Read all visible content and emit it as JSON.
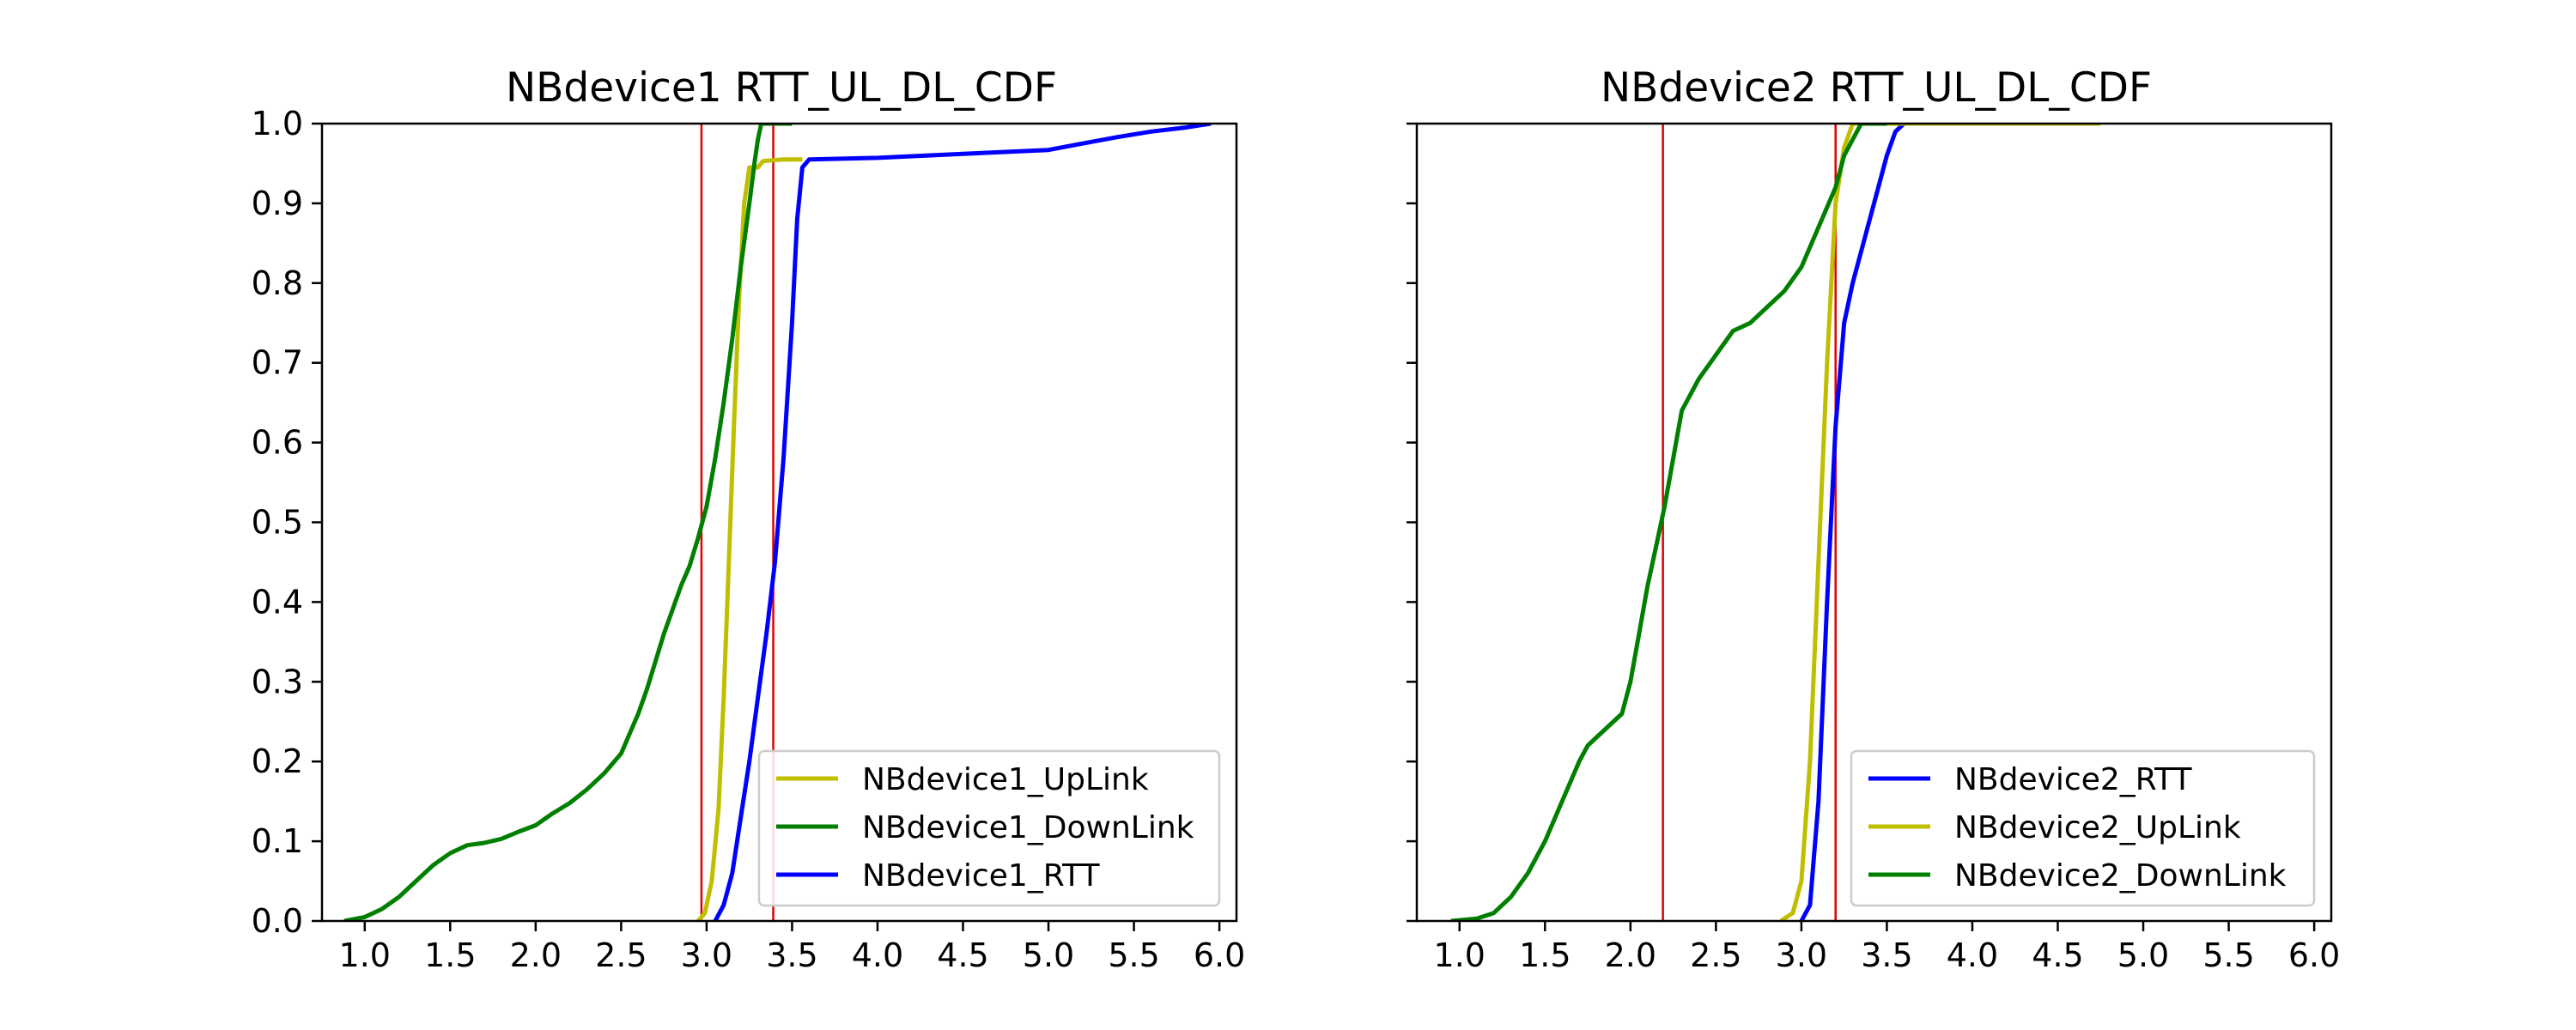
{
  "chart_data": [
    {
      "type": "line",
      "title": "NBdevice1 RTT_UL_DL_CDF",
      "xlabel": "",
      "ylabel": "",
      "xlim": [
        0.75,
        6.1
      ],
      "ylim": [
        0,
        1
      ],
      "xticks": [
        "1.0",
        "1.5",
        "2.0",
        "2.5",
        "3.0",
        "3.5",
        "4.0",
        "4.5",
        "5.0",
        "5.5",
        "6.0"
      ],
      "yticks": [
        "0.0",
        "0.1",
        "0.2",
        "0.3",
        "0.4",
        "0.5",
        "0.6",
        "0.7",
        "0.8",
        "0.9",
        "1.0"
      ],
      "show_yticklabels": true,
      "grid": false,
      "legend_position": "lower-right",
      "vlines": [
        2.97,
        3.39
      ],
      "vline_color": "#e00000",
      "series": [
        {
          "name": "NBdevice1_UpLink",
          "color": "#bfbf00",
          "points": [
            [
              2.95,
              0.0
            ],
            [
              2.99,
              0.01
            ],
            [
              3.03,
              0.05
            ],
            [
              3.07,
              0.14
            ],
            [
              3.1,
              0.28
            ],
            [
              3.13,
              0.45
            ],
            [
              3.16,
              0.62
            ],
            [
              3.19,
              0.78
            ],
            [
              3.22,
              0.9
            ],
            [
              3.25,
              0.945
            ],
            [
              3.3,
              0.945
            ],
            [
              3.33,
              0.953
            ],
            [
              3.45,
              0.955
            ],
            [
              3.56,
              0.955
            ]
          ]
        },
        {
          "name": "NBdevice1_DownLink",
          "color": "#007f00",
          "points": [
            [
              0.88,
              0.0
            ],
            [
              1.0,
              0.005
            ],
            [
              1.1,
              0.015
            ],
            [
              1.2,
              0.03
            ],
            [
              1.3,
              0.05
            ],
            [
              1.4,
              0.07
            ],
            [
              1.5,
              0.085
            ],
            [
              1.6,
              0.095
            ],
            [
              1.7,
              0.098
            ],
            [
              1.8,
              0.103
            ],
            [
              1.9,
              0.112
            ],
            [
              2.0,
              0.12
            ],
            [
              2.1,
              0.135
            ],
            [
              2.2,
              0.148
            ],
            [
              2.3,
              0.165
            ],
            [
              2.4,
              0.185
            ],
            [
              2.5,
              0.21
            ],
            [
              2.55,
              0.235
            ],
            [
              2.6,
              0.26
            ],
            [
              2.65,
              0.29
            ],
            [
              2.7,
              0.325
            ],
            [
              2.75,
              0.36
            ],
            [
              2.8,
              0.39
            ],
            [
              2.85,
              0.42
            ],
            [
              2.9,
              0.445
            ],
            [
              2.95,
              0.48
            ],
            [
              3.0,
              0.52
            ],
            [
              3.05,
              0.58
            ],
            [
              3.1,
              0.65
            ],
            [
              3.15,
              0.73
            ],
            [
              3.2,
              0.82
            ],
            [
              3.25,
              0.9
            ],
            [
              3.28,
              0.95
            ],
            [
              3.3,
              0.98
            ],
            [
              3.32,
              1.0
            ],
            [
              3.5,
              1.0
            ]
          ]
        },
        {
          "name": "NBdevice1_RTT",
          "color": "#0000ff",
          "points": [
            [
              3.05,
              0.0
            ],
            [
              3.1,
              0.02
            ],
            [
              3.15,
              0.06
            ],
            [
              3.2,
              0.13
            ],
            [
              3.25,
              0.2
            ],
            [
              3.3,
              0.28
            ],
            [
              3.35,
              0.36
            ],
            [
              3.4,
              0.45
            ],
            [
              3.45,
              0.58
            ],
            [
              3.5,
              0.75
            ],
            [
              3.53,
              0.88
            ],
            [
              3.56,
              0.945
            ],
            [
              3.6,
              0.955
            ],
            [
              4.0,
              0.957
            ],
            [
              4.5,
              0.962
            ],
            [
              5.0,
              0.967
            ],
            [
              5.2,
              0.975
            ],
            [
              5.4,
              0.983
            ],
            [
              5.6,
              0.99
            ],
            [
              5.8,
              0.995
            ],
            [
              5.95,
              1.0
            ]
          ]
        }
      ]
    },
    {
      "type": "line",
      "title": "NBdevice2 RTT_UL_DL_CDF",
      "xlabel": "",
      "ylabel": "",
      "xlim": [
        0.75,
        6.1
      ],
      "ylim": [
        0,
        1
      ],
      "xticks": [
        "1.0",
        "1.5",
        "2.0",
        "2.5",
        "3.0",
        "3.5",
        "4.0",
        "4.5",
        "5.0",
        "5.5",
        "6.0"
      ],
      "yticks": [
        "0.0",
        "0.1",
        "0.2",
        "0.3",
        "0.4",
        "0.5",
        "0.6",
        "0.7",
        "0.8",
        "0.9",
        "1.0"
      ],
      "show_yticklabels": false,
      "grid": false,
      "legend_position": "lower-right",
      "vlines": [
        2.19,
        3.2
      ],
      "vline_color": "#e00000",
      "series": [
        {
          "name": "NBdevice2_RTT",
          "color": "#0000ff",
          "points": [
            [
              3.0,
              0.0
            ],
            [
              3.05,
              0.02
            ],
            [
              3.1,
              0.15
            ],
            [
              3.15,
              0.4
            ],
            [
              3.2,
              0.62
            ],
            [
              3.25,
              0.75
            ],
            [
              3.3,
              0.8
            ],
            [
              3.35,
              0.84
            ],
            [
              3.4,
              0.88
            ],
            [
              3.45,
              0.92
            ],
            [
              3.5,
              0.96
            ],
            [
              3.55,
              0.99
            ],
            [
              3.6,
              1.0
            ],
            [
              4.5,
              1.0
            ]
          ]
        },
        {
          "name": "NBdevice2_UpLink",
          "color": "#bfbf00",
          "points": [
            [
              2.88,
              0.0
            ],
            [
              2.95,
              0.01
            ],
            [
              3.0,
              0.05
            ],
            [
              3.05,
              0.2
            ],
            [
              3.1,
              0.45
            ],
            [
              3.15,
              0.7
            ],
            [
              3.2,
              0.9
            ],
            [
              3.25,
              0.97
            ],
            [
              3.3,
              1.0
            ],
            [
              4.75,
              1.0
            ]
          ]
        },
        {
          "name": "NBdevice2_DownLink",
          "color": "#007f00",
          "points": [
            [
              0.95,
              0.0
            ],
            [
              1.1,
              0.003
            ],
            [
              1.2,
              0.01
            ],
            [
              1.3,
              0.03
            ],
            [
              1.4,
              0.06
            ],
            [
              1.5,
              0.1
            ],
            [
              1.6,
              0.15
            ],
            [
              1.7,
              0.2
            ],
            [
              1.75,
              0.22
            ],
            [
              1.85,
              0.24
            ],
            [
              1.95,
              0.26
            ],
            [
              2.0,
              0.3
            ],
            [
              2.05,
              0.36
            ],
            [
              2.1,
              0.42
            ],
            [
              2.15,
              0.47
            ],
            [
              2.2,
              0.52
            ],
            [
              2.25,
              0.58
            ],
            [
              2.3,
              0.64
            ],
            [
              2.35,
              0.66
            ],
            [
              2.4,
              0.68
            ],
            [
              2.5,
              0.71
            ],
            [
              2.6,
              0.74
            ],
            [
              2.7,
              0.75
            ],
            [
              2.8,
              0.77
            ],
            [
              2.9,
              0.79
            ],
            [
              3.0,
              0.82
            ],
            [
              3.1,
              0.87
            ],
            [
              3.2,
              0.92
            ],
            [
              3.25,
              0.96
            ],
            [
              3.3,
              0.98
            ],
            [
              3.35,
              1.0
            ],
            [
              3.5,
              1.0
            ]
          ]
        }
      ]
    }
  ]
}
